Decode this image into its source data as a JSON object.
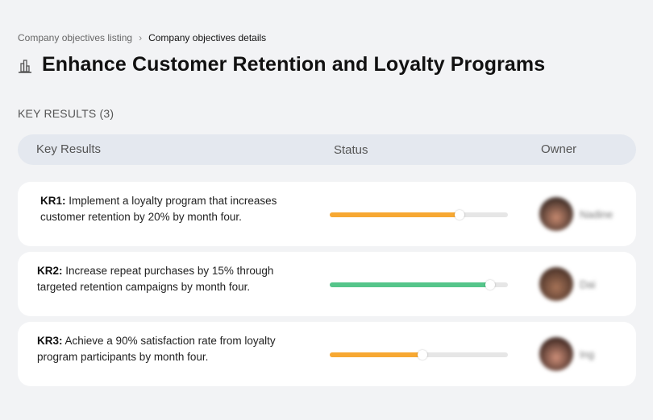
{
  "breadcrumb": {
    "parent": "Company objectives listing",
    "separator": "›",
    "current": "Company objectives details"
  },
  "objective": {
    "icon": "building-chart-icon",
    "title": "Enhance Customer Retention and Loyalty Programs"
  },
  "key_results_section": {
    "label": "KEY RESULTS (3)"
  },
  "table": {
    "headers": {
      "key_results": "Key Results",
      "status": "Status",
      "owner": "Owner"
    },
    "rows": [
      {
        "code": "KR1:",
        "text": " Implement a loyalty program that increases customer retention by 20% by month four.",
        "progress": 73,
        "progress_color": "#f7a832",
        "owner_name": "Nadine",
        "avatar_colors": [
          "#3a2a24",
          "#c88a70"
        ]
      },
      {
        "code": "KR2:",
        "text": " Increase repeat purchases by 15% through targeted retention campaigns by month four.",
        "progress": 90,
        "progress_color": "#55c58a",
        "owner_name": "Dai",
        "avatar_colors": [
          "#4a3228",
          "#a87458"
        ]
      },
      {
        "code": "KR3:",
        "text": " Achieve a 90% satisfaction rate from loyalty program participants by month four.",
        "progress": 52,
        "progress_color": "#f7a832",
        "owner_name": "Ing",
        "avatar_colors": [
          "#3c2620",
          "#d0907a"
        ]
      }
    ]
  },
  "colors": {
    "background": "#f2f3f5",
    "header_bar": "#e4e8ef",
    "card": "#ffffff",
    "progress_track": "#e6e6e6",
    "orange": "#f7a832",
    "green": "#55c58a"
  }
}
